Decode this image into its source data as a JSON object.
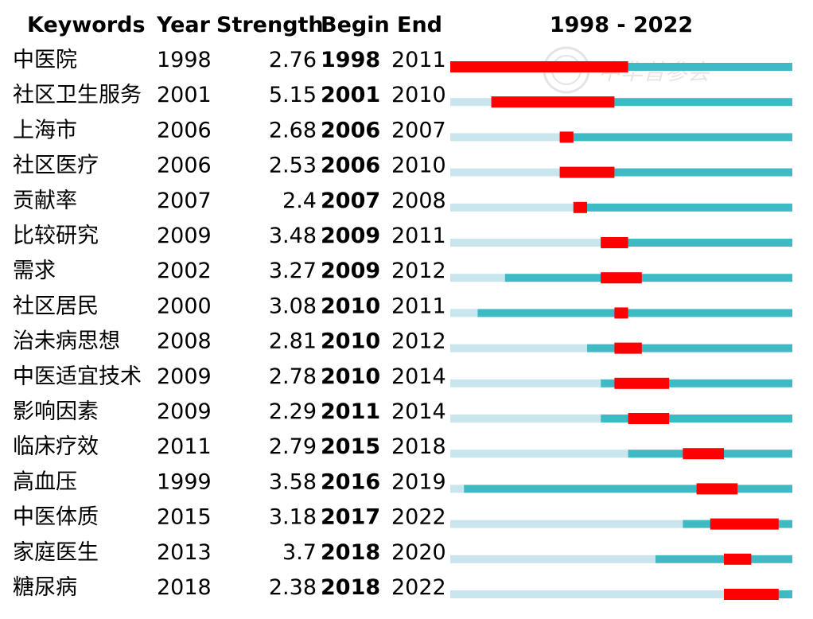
{
  "chart_data": {
    "type": "table",
    "headers": [
      "Keywords",
      "Year",
      "Strength",
      "Begin",
      "End"
    ],
    "timeline_title": "1998 - 2022",
    "range": [
      1998,
      2022
    ],
    "rows": [
      {
        "keyword": "中医院",
        "year": 1998,
        "strength": "2.76",
        "begin": 1998,
        "end": 2011
      },
      {
        "keyword": "社区卫生服务",
        "year": 2001,
        "strength": "5.15",
        "begin": 2001,
        "end": 2010
      },
      {
        "keyword": "上海市",
        "year": 2006,
        "strength": "2.68",
        "begin": 2006,
        "end": 2007
      },
      {
        "keyword": "社区医疗",
        "year": 2006,
        "strength": "2.53",
        "begin": 2006,
        "end": 2010
      },
      {
        "keyword": "贡献率",
        "year": 2007,
        "strength": "2.4",
        "begin": 2007,
        "end": 2008
      },
      {
        "keyword": "比较研究",
        "year": 2009,
        "strength": "3.48",
        "begin": 2009,
        "end": 2011
      },
      {
        "keyword": "需求",
        "year": 2002,
        "strength": "3.27",
        "begin": 2009,
        "end": 2012
      },
      {
        "keyword": "社区居民",
        "year": 2000,
        "strength": "3.08",
        "begin": 2010,
        "end": 2011
      },
      {
        "keyword": "治未病思想",
        "year": 2008,
        "strength": "2.81",
        "begin": 2010,
        "end": 2012
      },
      {
        "keyword": "中医适宜技术",
        "year": 2009,
        "strength": "2.78",
        "begin": 2010,
        "end": 2014
      },
      {
        "keyword": "影响因素",
        "year": 2009,
        "strength": "2.29",
        "begin": 2011,
        "end": 2014
      },
      {
        "keyword": "临床疗效",
        "year": 2011,
        "strength": "2.79",
        "begin": 2015,
        "end": 2018
      },
      {
        "keyword": "高血压",
        "year": 1999,
        "strength": "3.58",
        "begin": 2016,
        "end": 2019
      },
      {
        "keyword": "中医体质",
        "year": 2015,
        "strength": "3.18",
        "begin": 2017,
        "end": 2022
      },
      {
        "keyword": "家庭医生",
        "year": 2013,
        "strength": "3.7",
        "begin": 2018,
        "end": 2020
      },
      {
        "keyword": "糖尿病",
        "year": 2018,
        "strength": "2.38",
        "begin": 2018,
        "end": 2022
      }
    ],
    "colors": {
      "before": "#c9e6ee",
      "active": "#3dbac4",
      "burst": "#ff0000"
    }
  },
  "watermark": "中华普参会"
}
